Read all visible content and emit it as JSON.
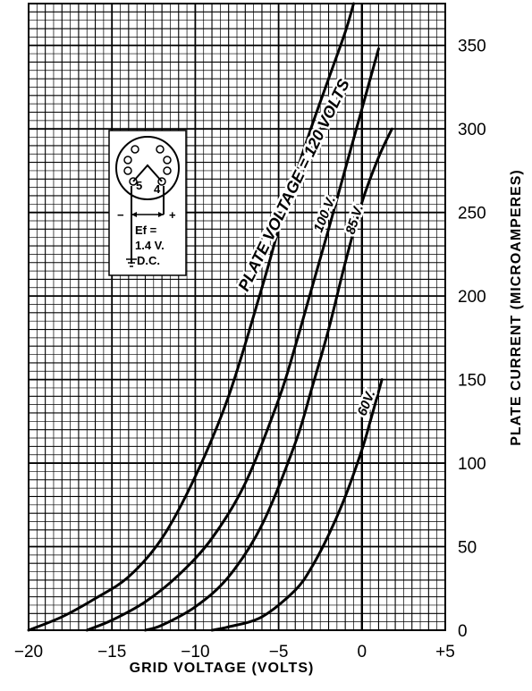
{
  "chart_data": {
    "type": "line",
    "xlabel": "GRID  VOLTAGE  (VOLTS)",
    "ylabel": "PLATE  CURRENT  (MICROAMPERES)",
    "xlim": [
      -20,
      5
    ],
    "ylim": [
      0,
      375
    ],
    "x_ticks": [
      "−20",
      "−15",
      "−10",
      "−5",
      "0",
      "+5"
    ],
    "y_ticks": [
      "0",
      "50",
      "100",
      "150",
      "200",
      "250",
      "300",
      "350"
    ],
    "grid": true,
    "series": [
      {
        "name": "PLATE  VOLTAGE = 120 VOLTS",
        "x": [
          -20,
          -18,
          -16,
          -14,
          -12,
          -10,
          -8,
          -6,
          -5,
          -4,
          -3,
          -2,
          -1,
          -0.5
        ],
        "y": [
          0,
          8,
          19,
          32,
          55,
          92,
          140,
          205,
          240,
          272,
          302,
          330,
          358,
          375
        ]
      },
      {
        "name": "100 V.",
        "x": [
          -16.5,
          -15,
          -13,
          -11,
          -9,
          -7,
          -5,
          -4,
          -3,
          -2,
          -1,
          0,
          1
        ],
        "y": [
          0,
          6,
          17,
          33,
          55,
          88,
          138,
          170,
          205,
          240,
          276,
          312,
          348
        ]
      },
      {
        "name": "85 V.",
        "x": [
          -13,
          -12,
          -10,
          -8,
          -6,
          -4,
          -3,
          -2,
          -1,
          0,
          1,
          1.8
        ],
        "y": [
          0,
          3,
          14,
          32,
          63,
          112,
          145,
          180,
          220,
          256,
          283,
          300
        ]
      },
      {
        "name": "60V.",
        "x": [
          -9,
          -8,
          -6,
          -4,
          -3,
          -2,
          -1,
          0,
          0.5,
          1.2
        ],
        "y": [
          0,
          2,
          8,
          24,
          38,
          57,
          80,
          108,
          125,
          150
        ]
      }
    ],
    "inset": {
      "pin_labels": [
        "5",
        "4"
      ],
      "polarity": [
        "−",
        "+"
      ],
      "caption": [
        "Ef =",
        "1.4 V.",
        "D.C."
      ]
    }
  }
}
